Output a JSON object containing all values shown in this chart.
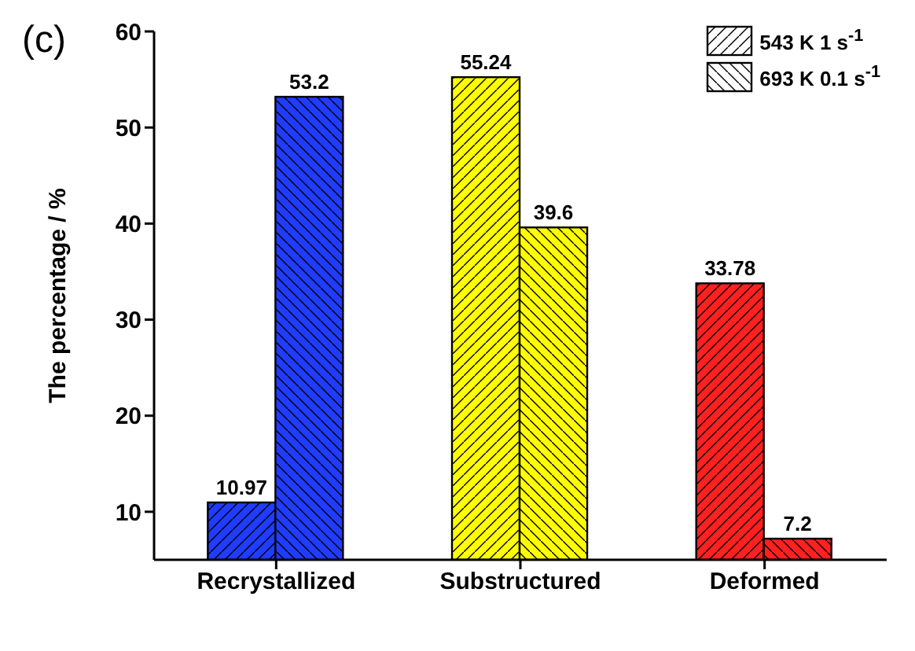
{
  "chart_data": {
    "type": "bar",
    "ylabel": "The percentage / %",
    "annotations": [
      "(c)"
    ],
    "categories": [
      "Recrystallized",
      "Substructured",
      "Deformed"
    ],
    "series": [
      {
        "name": "543 K 1 s$^{-1}$",
        "colors": [
          "#1f3cff",
          "#ffff00",
          "#ff2020"
        ],
        "values": [
          10.97,
          55.24,
          33.78
        ]
      },
      {
        "name": "693 K 0.1 s$^{-1}$",
        "colors": [
          "#1f3cff",
          "#ffff00",
          "#ff2020"
        ],
        "values": [
          53.2,
          39.6,
          7.2
        ]
      }
    ],
    "ylim": [
      5,
      60
    ],
    "yticks": [
      10,
      20,
      30,
      40,
      50,
      60
    ],
    "data_labels": true,
    "grid": false,
    "legend": "top right"
  }
}
